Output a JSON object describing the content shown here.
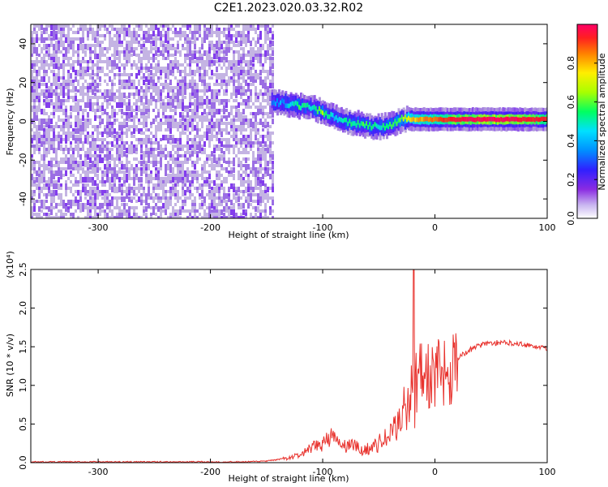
{
  "title": "C2E1.2023.020.03.32.R02",
  "chart_data": [
    {
      "type": "heatmap",
      "xlabel": "Height of straight line (km)",
      "ylabel": "Frequency (Hz)",
      "xlim": [
        -360,
        100
      ],
      "ylim": [
        -50,
        50
      ],
      "x_ticks": [
        -300,
        -200,
        -100,
        0,
        100
      ],
      "y_ticks": [
        -40,
        -20,
        0,
        20,
        40
      ],
      "colorbar": {
        "label": "Normalized spectral amplitude",
        "range": [
          0,
          1
        ],
        "ticks": [
          0.0,
          0.2,
          0.4,
          0.6,
          0.8
        ],
        "colormap": [
          "#ffffff",
          "#b39ddb",
          "#7c2ff0",
          "#3f1ffc",
          "#0072ff",
          "#00d8ff",
          "#00ff6e",
          "#b8ff00",
          "#ffea00",
          "#ff7a00",
          "#ff1a1a",
          "#ff0066"
        ]
      },
      "noise_region": {
        "x_range": [
          -360,
          -145
        ],
        "frequency_range": [
          -50,
          50
        ],
        "amplitude": 0.1
      },
      "ridge": [
        {
          "x": -145,
          "f": 10,
          "amp": 0.35
        },
        {
          "x": -130,
          "f": 9,
          "amp": 0.45
        },
        {
          "x": -120,
          "f": 8,
          "amp": 0.55
        },
        {
          "x": -110,
          "f": 7,
          "amp": 0.5
        },
        {
          "x": -100,
          "f": 5,
          "amp": 0.6
        },
        {
          "x": -90,
          "f": 2,
          "amp": 0.45
        },
        {
          "x": -80,
          "f": 0,
          "amp": 0.5
        },
        {
          "x": -70,
          "f": -1,
          "amp": 0.55
        },
        {
          "x": -60,
          "f": -2,
          "amp": 0.55
        },
        {
          "x": -50,
          "f": -3,
          "amp": 0.5
        },
        {
          "x": -40,
          "f": -2,
          "amp": 0.55
        },
        {
          "x": -30,
          "f": 1,
          "amp": 0.6
        },
        {
          "x": -20,
          "f": 1,
          "amp": 0.75
        },
        {
          "x": -10,
          "f": 1,
          "amp": 0.8
        },
        {
          "x": 0,
          "f": 1,
          "amp": 0.85
        },
        {
          "x": 20,
          "f": 1,
          "amp": 0.95
        },
        {
          "x": 40,
          "f": 1,
          "amp": 1.0
        },
        {
          "x": 60,
          "f": 1,
          "amp": 1.0
        },
        {
          "x": 80,
          "f": 1,
          "amp": 0.95
        },
        {
          "x": 100,
          "f": 1,
          "amp": 0.9
        }
      ]
    },
    {
      "type": "line",
      "xlabel": "Height of straight line (km)",
      "ylabel": "SNR (10 * v/v)",
      "y_multiplier": "(x10⁴)",
      "xlim": [
        -360,
        100
      ],
      "ylim": [
        0,
        2.5
      ],
      "x_ticks": [
        -300,
        -200,
        -100,
        0,
        100
      ],
      "y_ticks": [
        0.0,
        0.5,
        1.0,
        1.5,
        2.0,
        2.5
      ],
      "line_color": "#e8322d",
      "series": [
        {
          "x": [
            -360,
            -300,
            -250,
            -200,
            -170,
            -150,
            -130,
            -120,
            -110,
            -100,
            -95,
            -90,
            -85,
            -80,
            -75,
            -70,
            -65,
            -60,
            -55,
            -50,
            -45,
            -40,
            -35,
            -30,
            -27,
            -25,
            -22,
            -20,
            -19,
            -18,
            -17,
            -15,
            -12,
            -10,
            -5,
            0,
            5,
            10,
            15,
            20,
            25,
            30,
            40,
            50,
            60,
            70,
            80,
            90,
            100
          ],
          "y": [
            0.01,
            0.01,
            0.01,
            0.01,
            0.01,
            0.02,
            0.06,
            0.1,
            0.18,
            0.25,
            0.35,
            0.3,
            0.25,
            0.2,
            0.25,
            0.2,
            0.15,
            0.18,
            0.2,
            0.25,
            0.3,
            0.35,
            0.45,
            0.6,
            0.9,
            0.6,
            0.9,
            1.1,
            2.55,
            0.8,
            1.2,
            1.1,
            1.1,
            1.2,
            1.1,
            1.1,
            1.15,
            1.2,
            1.3,
            1.35,
            1.4,
            1.45,
            1.52,
            1.55,
            1.55,
            1.55,
            1.53,
            1.5,
            1.48
          ]
        }
      ]
    }
  ]
}
